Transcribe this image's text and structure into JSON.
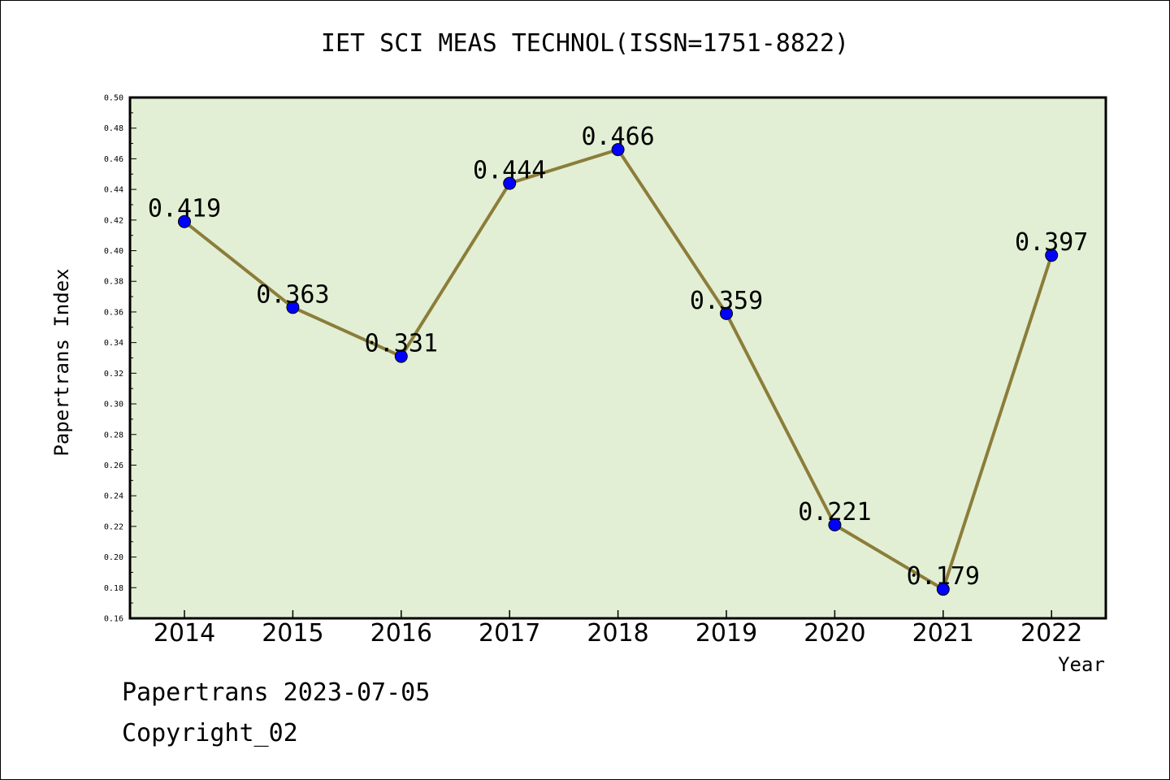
{
  "chart_data": {
    "type": "line",
    "title": "IET SCI MEAS TECHNOL(ISSN=1751-8822)",
    "xlabel": "Year",
    "ylabel": "Papertrans Index",
    "categories": [
      "2014",
      "2015",
      "2016",
      "2017",
      "2018",
      "2019",
      "2020",
      "2021",
      "2022"
    ],
    "values": [
      0.419,
      0.363,
      0.331,
      0.444,
      0.466,
      0.359,
      0.221,
      0.179,
      0.397
    ],
    "data_labels": [
      "0.419",
      "0.363",
      "0.331",
      "0.444",
      "0.466",
      "0.359",
      "0.221",
      "0.179",
      "0.397"
    ],
    "ylim": [
      0.16,
      0.5
    ],
    "yticks": [
      "0.16",
      "0.18",
      "0.20",
      "0.22",
      "0.24",
      "0.26",
      "0.28",
      "0.30",
      "0.32",
      "0.34",
      "0.36",
      "0.38",
      "0.40",
      "0.42",
      "0.44",
      "0.46",
      "0.48",
      "0.50"
    ],
    "grid": false,
    "colors": {
      "plot_background": "#e2efd4",
      "line": "#8b7d3a",
      "marker": "#0000ff"
    }
  },
  "footer": {
    "date_text": "Papertrans 2023-07-05",
    "copyright_text": "Copyright_02"
  }
}
